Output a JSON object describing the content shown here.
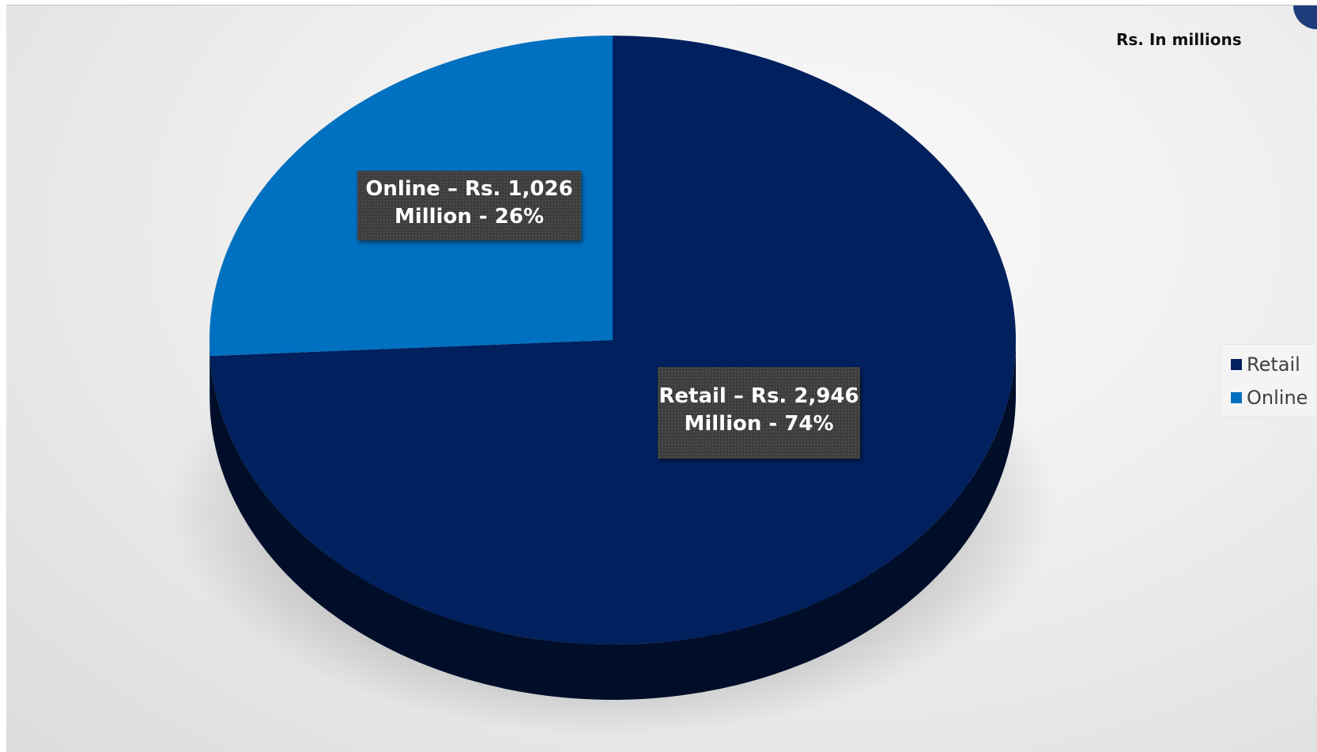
{
  "chart_data": {
    "type": "pie",
    "title": "",
    "units_note": "Rs. In millions",
    "slices": [
      {
        "name": "Retail",
        "value": 2946,
        "percent": 74,
        "color": "#00205e",
        "label_line1": "Retail – Rs.  2,946",
        "label_line2": "Million - 74%"
      },
      {
        "name": "Online",
        "value": 1026,
        "percent": 26,
        "color": "#0070c0",
        "label_line1": "Online – Rs.  1,026",
        "label_line2": "Million - 26%"
      }
    ],
    "legend": {
      "position": "right",
      "items": [
        {
          "label": "Retail",
          "color": "#00205e"
        },
        {
          "label": "Online",
          "color": "#0070c0"
        }
      ]
    },
    "style": "3d-pie"
  }
}
